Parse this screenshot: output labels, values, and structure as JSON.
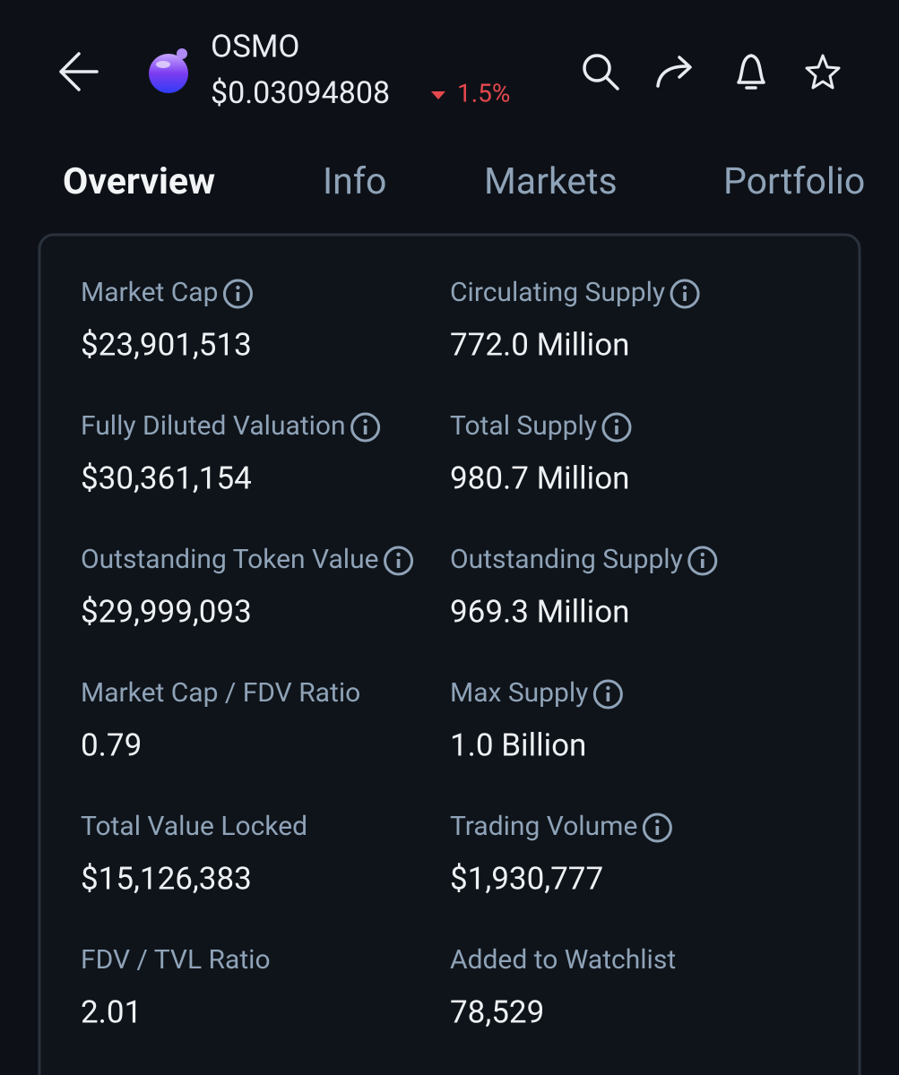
{
  "header": {
    "symbol": "OSMO",
    "price": "$0.03094808",
    "change": "1.5%"
  },
  "tabs": [
    "Overview",
    "Info",
    "Markets",
    "Portfolio"
  ],
  "stats": [
    {
      "label": "Market Cap",
      "value": "$23,901,513",
      "info": true
    },
    {
      "label": "Circulating Supply",
      "value": "772.0 Million",
      "info": true
    },
    {
      "label": "Fully Diluted Valuation",
      "value": "$30,361,154",
      "info": true
    },
    {
      "label": "Total Supply",
      "value": "980.7 Million",
      "info": true
    },
    {
      "label": "Outstanding Token Value",
      "value": "$29,999,093",
      "info": true
    },
    {
      "label": "Outstanding Supply",
      "value": "969.3 Million",
      "info": true
    },
    {
      "label": "Market Cap / FDV Ratio",
      "value": "0.79",
      "info": false
    },
    {
      "label": "Max Supply",
      "value": "1.0 Billion",
      "info": true
    },
    {
      "label": "Total Value Locked",
      "value": "$15,126,383",
      "info": false
    },
    {
      "label": "Trading Volume",
      "value": "$1,930,777",
      "info": true
    },
    {
      "label": "FDV / TVL Ratio",
      "value": "2.01",
      "info": false
    },
    {
      "label": "Added to Watchlist",
      "value": "78,529",
      "info": false
    }
  ]
}
